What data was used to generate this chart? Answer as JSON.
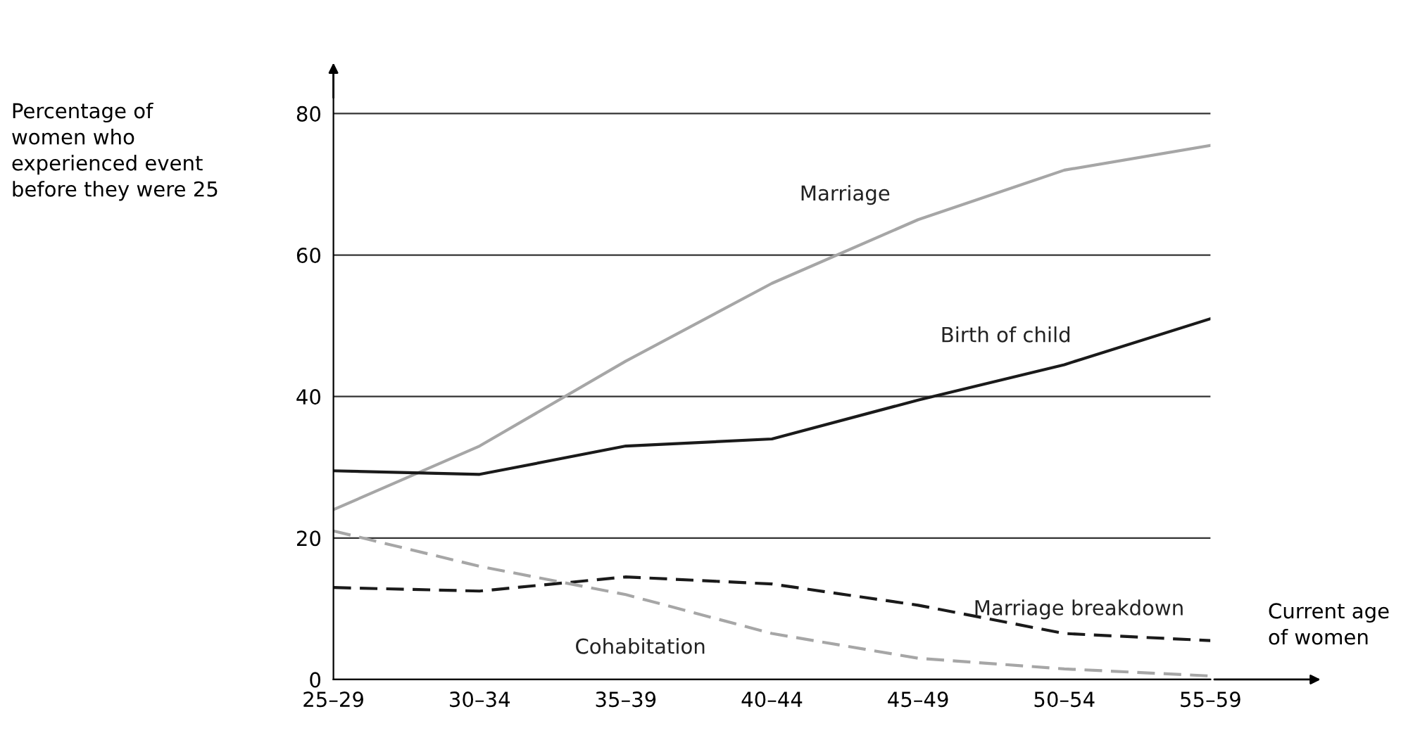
{
  "chart_data": {
    "type": "line",
    "ylabel": "Percentage of\nwomen who\nexperienced event\nbefore they were 25",
    "xlabel": "Current age\nof women",
    "categories": [
      "25–29",
      "30–34",
      "35–39",
      "40–44",
      "45–49",
      "50–54",
      "55–59"
    ],
    "series": [
      {
        "name": "Marriage",
        "color": "#a6a6a6",
        "line_style": "solid",
        "values": [
          24,
          33,
          45,
          56,
          65,
          72,
          75.5
        ]
      },
      {
        "name": "Birth of child",
        "color": "#1a1a1a",
        "line_style": "solid",
        "values": [
          29.5,
          29,
          33,
          34,
          39.5,
          44.5,
          51
        ]
      },
      {
        "name": "Marriage breakdown",
        "color": "#1a1a1a",
        "line_style": "dashed",
        "values": [
          13,
          12.5,
          14.5,
          13.5,
          10.5,
          6.5,
          5.5
        ]
      },
      {
        "name": "Cohabitation",
        "color": "#a6a6a6",
        "line_style": "dashed",
        "values": [
          21,
          16,
          12,
          6.5,
          3,
          1.5,
          0.5
        ]
      }
    ],
    "ylim": [
      0,
      86
    ],
    "yticks": [
      0,
      20,
      40,
      60,
      80
    ],
    "grid": "y",
    "legend": false
  }
}
